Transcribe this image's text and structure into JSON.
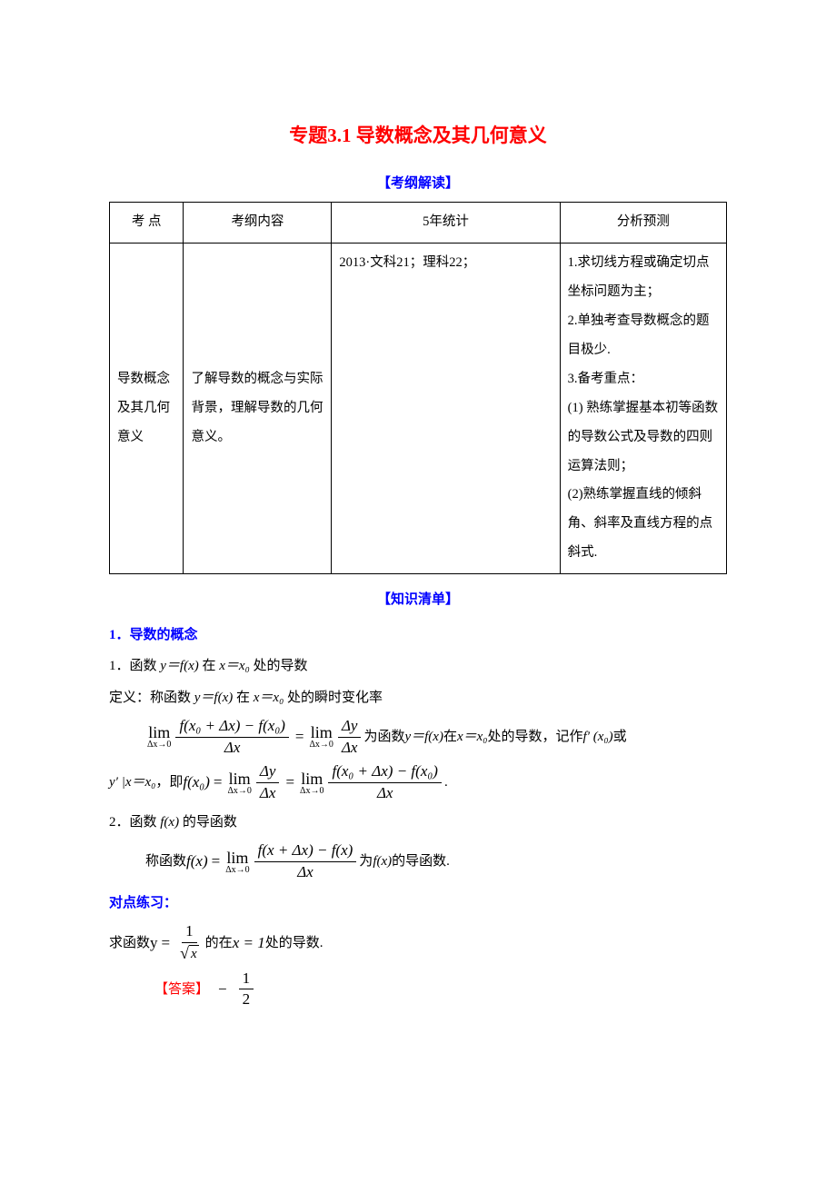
{
  "title": "专题3.1 导数概念及其几何意义",
  "section_kaogang": "【考纲解读】",
  "table": {
    "headers": [
      "考  点",
      "考纲内容",
      "5年统计",
      "分析预测"
    ],
    "rows": [
      {
        "topic": "导数概念及其几何意义",
        "content": "了解导数的概念与实际背景，理解导数的几何意义。",
        "stats": "2013·文科21；理科22；",
        "analysis": "1.求切线方程或确定切点坐标问题为主；\n2.单独考查导数概念的题目极少.\n3.备考重点：\n  (1) 熟练掌握基本初等函数的导数公式及导数的四则运算法则；\n  (2)熟练掌握直线的倾斜角、斜率及直线方程的点斜式."
      }
    ]
  },
  "section_zhishi": "【知识清单】",
  "heading1": "1．导数的概念",
  "para1_prefix": "1．函数 ",
  "para1_mid": " 在 ",
  "para1_suffix": " 处的导数",
  "para2_prefix": "定义：称函数 ",
  "para2_mid": " 在 ",
  "para2_suffix": " 处的瞬时变化率",
  "math_suffix_1a": " 为函数 ",
  "math_suffix_1b": " 在 ",
  "math_suffix_1c": " 处的导数，记作 ",
  "math_suffix_1d": " 或",
  "para_yprime": "，即 ",
  "para3_prefix": "2．函数 ",
  "para3_suffix": " 的导函数",
  "para4_prefix": "称函数 ",
  "para4_mid": " 为 ",
  "para4_suffix": " 的导函数.",
  "heading2": "对点练习：",
  "practice_prefix": "求函数 ",
  "practice_mid": " 的在 ",
  "practice_suffix": " 处的导数.",
  "answer_label": "【答案】",
  "math": {
    "yfx": "y＝f(x)",
    "xx0": "x＝x₀",
    "fx": "f(x)",
    "fprime_x0": "f′ (x₀)",
    "yprime_x0": "y′ |x＝x₀",
    "lim": "lim",
    "dx0": "Δx→0",
    "eq": "=",
    "dot": ".",
    "y_eq": "y",
    "x_eq_1": "x = 1",
    "neg": "−",
    "one": "1",
    "two": "2",
    "x": "x",
    "sqrt_sym": "√",
    "frac1_num": "f(x₀ + Δx) − f(x₀)",
    "frac1_den": "Δx",
    "frac2_num": "Δy",
    "frac2_den": "Δx",
    "frac3_num": "f(x₀ + Δx) − f(x₀)",
    "frac4_num": "f(x + Δx) − f(x)",
    "fx0_eq": "f(x₀)",
    "fx_eq": "f(x)"
  }
}
